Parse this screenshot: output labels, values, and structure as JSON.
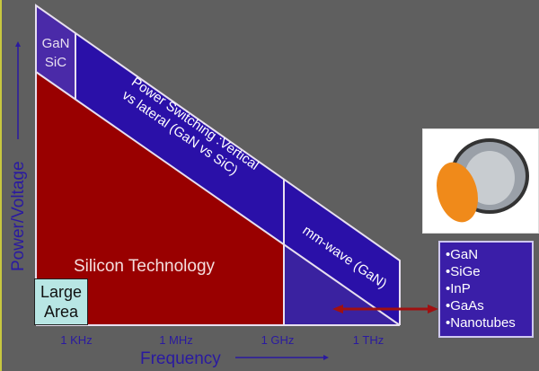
{
  "axes": {
    "y_label": "Power/Voltage",
    "x_label": "Frequency",
    "x_ticks": [
      "1 KHz",
      "1 MHz",
      "1 GHz",
      "1 THz"
    ]
  },
  "regions": {
    "gan_sic": [
      "GaN",
      "SiC"
    ],
    "power_switching": [
      "Power Switching :Vertical",
      "vs lateral (GaN vs SiC)"
    ],
    "silicon": "Silicon Technology",
    "mm_wave": "mm-wave (GaN)",
    "large_area": [
      "Large",
      "Area"
    ]
  },
  "materials": [
    "•GaN",
    "•SiGe",
    "•InP",
    "•GaAs",
    "•Nanotubes"
  ],
  "colors": {
    "background": "#5f5f5f",
    "silicon": "#990000",
    "band": "#2a10a8",
    "gan_sic": "#4a2aa8",
    "axis": "#2a1aa0",
    "arrow": "#a01010"
  }
}
